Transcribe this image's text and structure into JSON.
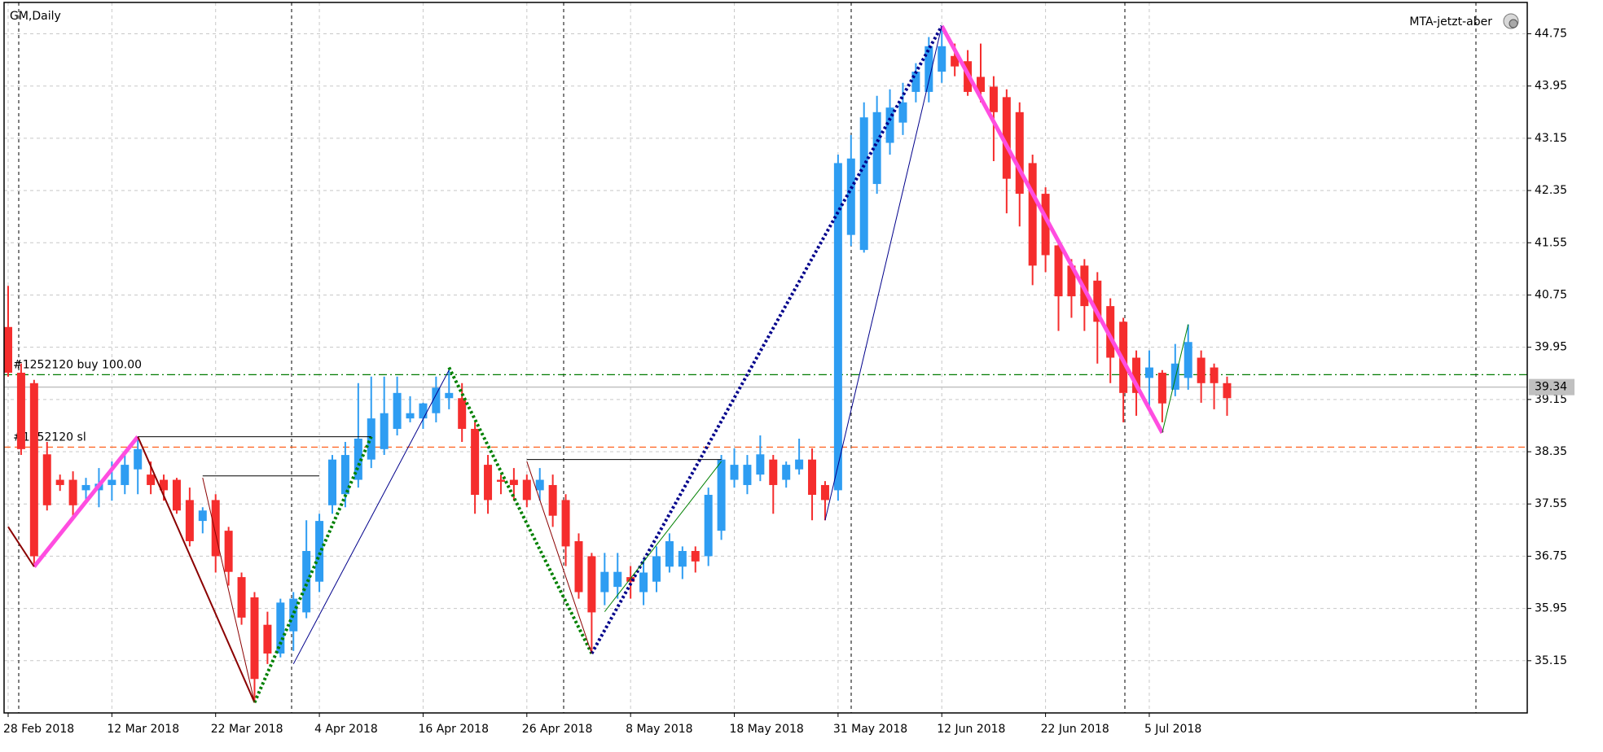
{
  "chart_data": {
    "type": "candlestick",
    "title": "GM,Daily",
    "indicator": "MTA-jetzt-aber",
    "categories": [
      "28 Feb 2018",
      null,
      null,
      null,
      null,
      null,
      null,
      null,
      "12 Mar 2018",
      null,
      null,
      null,
      null,
      null,
      null,
      null,
      "22 Mar 2018",
      null,
      null,
      null,
      null,
      null,
      null,
      null,
      "4 Apr 2018",
      null,
      null,
      null,
      null,
      null,
      null,
      null,
      "16 Apr 2018",
      null,
      null,
      null,
      null,
      null,
      null,
      null,
      "26 Apr 2018",
      null,
      null,
      null,
      null,
      null,
      null,
      null,
      "8 May 2018",
      null,
      null,
      null,
      null,
      null,
      null,
      null,
      "18 May 2018",
      null,
      null,
      null,
      null,
      null,
      null,
      null,
      "31 May 2018",
      null,
      null,
      null,
      null,
      null,
      null,
      null,
      "12 Jun 2018",
      null,
      null,
      null,
      null,
      null,
      null,
      null,
      "22 Jun 2018",
      null,
      null,
      null,
      null,
      null,
      null,
      null,
      "5 Jul 2018",
      null,
      null,
      null,
      null,
      null,
      null
    ],
    "open": [
      40.26,
      39.56,
      39.4,
      38.31,
      37.92,
      37.92,
      37.76,
      37.76,
      37.84,
      37.84,
      38.08,
      38.0,
      37.92,
      37.92,
      37.61,
      37.29,
      37.61,
      37.14,
      36.43,
      36.12,
      35.7,
      35.26,
      35.6,
      35.89,
      36.36,
      37.53,
      37.7,
      37.92,
      38.23,
      38.39,
      38.7,
      38.86,
      38.86,
      38.94,
      39.17,
      39.17,
      38.7,
      38.15,
      37.92,
      37.92,
      37.92,
      37.76,
      37.84,
      37.61,
      36.98,
      36.75,
      36.2,
      36.28,
      36.43,
      36.2,
      36.36,
      36.59,
      36.59,
      36.83,
      36.75,
      37.14,
      37.92,
      37.84,
      38.0,
      38.23,
      37.92,
      38.08,
      38.23,
      37.84,
      37.76,
      41.67,
      41.44,
      42.45,
      43.08,
      43.39,
      43.86,
      43.86,
      44.17,
      44.41,
      44.33,
      44.09,
      43.94,
      43.78,
      43.55,
      42.77,
      42.3,
      41.51,
      41.2,
      41.2,
      40.97,
      40.58,
      40.34,
      39.79,
      39.48,
      39.56,
      39.3,
      39.48,
      39.79,
      39.64,
      39.4
    ],
    "high": [
      40.89,
      39.7,
      39.45,
      38.5,
      38.0,
      38.05,
      37.95,
      38.1,
      38.2,
      38.3,
      38.58,
      38.2,
      38.0,
      37.95,
      37.8,
      37.5,
      37.7,
      37.2,
      36.5,
      36.2,
      35.9,
      36.1,
      36.2,
      37.3,
      37.4,
      38.3,
      38.5,
      39.4,
      39.5,
      39.5,
      39.5,
      39.2,
      39.1,
      39.5,
      39.6,
      39.4,
      38.8,
      38.3,
      38.0,
      38.1,
      38.0,
      38.1,
      38.0,
      37.7,
      37.1,
      36.8,
      36.8,
      36.8,
      36.6,
      36.7,
      36.9,
      37.1,
      36.9,
      36.9,
      37.8,
      38.3,
      38.4,
      38.3,
      38.6,
      38.3,
      38.2,
      38.55,
      38.4,
      37.9,
      42.9,
      43.2,
      43.7,
      43.8,
      43.9,
      44.0,
      44.3,
      44.7,
      44.87,
      44.6,
      44.5,
      44.6,
      44.1,
      43.9,
      43.7,
      42.9,
      42.4,
      41.6,
      41.3,
      41.3,
      41.1,
      40.7,
      40.4,
      39.9,
      39.9,
      39.6,
      40.0,
      40.3,
      39.9,
      39.7,
      39.5
    ],
    "low": [
      39.5,
      38.3,
      36.59,
      37.45,
      37.75,
      37.3,
      37.6,
      37.5,
      37.6,
      37.7,
      37.7,
      37.7,
      37.6,
      37.4,
      36.9,
      37.1,
      36.5,
      36.3,
      35.7,
      34.51,
      35.1,
      35.2,
      35.3,
      35.8,
      36.2,
      37.4,
      37.5,
      37.8,
      38.1,
      38.3,
      38.6,
      38.8,
      38.7,
      38.8,
      39.0,
      38.5,
      37.4,
      37.4,
      37.7,
      37.6,
      37.5,
      37.6,
      37.2,
      36.6,
      36.1,
      35.26,
      36.0,
      36.1,
      36.1,
      36.0,
      36.2,
      36.5,
      36.4,
      36.5,
      36.6,
      37.0,
      37.8,
      37.7,
      37.9,
      37.4,
      37.8,
      38.0,
      37.3,
      37.3,
      37.6,
      41.5,
      41.4,
      42.3,
      42.9,
      43.2,
      43.7,
      43.7,
      44.0,
      44.1,
      43.8,
      43.7,
      42.8,
      42.0,
      41.8,
      40.9,
      41.1,
      40.2,
      40.4,
      40.2,
      39.7,
      39.4,
      38.8,
      38.9,
      39.0,
      38.8,
      39.2,
      39.3,
      39.1,
      39.0,
      38.9
    ],
    "close": [
      39.56,
      38.39,
      36.75,
      37.53,
      37.84,
      37.53,
      37.84,
      37.86,
      37.92,
      38.15,
      38.39,
      37.84,
      37.76,
      37.45,
      36.98,
      37.45,
      36.75,
      36.51,
      35.81,
      34.87,
      35.26,
      36.04,
      36.1,
      36.83,
      37.29,
      38.23,
      38.3,
      38.55,
      38.86,
      38.94,
      39.25,
      38.94,
      39.09,
      39.33,
      39.25,
      38.7,
      37.69,
      37.61,
      37.89,
      37.84,
      37.61,
      37.92,
      37.37,
      36.9,
      36.2,
      35.89,
      36.51,
      36.51,
      36.36,
      36.5,
      36.75,
      36.98,
      36.83,
      36.67,
      37.69,
      38.23,
      38.15,
      38.15,
      38.31,
      37.84,
      38.15,
      38.23,
      37.69,
      37.61,
      42.77,
      42.84,
      43.47,
      43.55,
      43.62,
      43.7,
      44.17,
      44.56,
      44.56,
      44.25,
      43.86,
      43.86,
      43.55,
      42.53,
      42.3,
      41.2,
      41.36,
      40.73,
      40.73,
      40.58,
      40.34,
      39.79,
      39.25,
      39.25,
      39.64,
      39.09,
      39.7,
      40.03,
      39.4,
      39.4,
      39.17
    ],
    "up_color": "#2e9df2",
    "down_color": "#f52d2d",
    "ylim": [
      34.35,
      45.23
    ],
    "yticks": [
      35.15,
      35.95,
      36.75,
      37.55,
      38.35,
      39.15,
      39.95,
      40.75,
      41.55,
      42.35,
      43.15,
      43.95,
      44.75
    ],
    "grid": true,
    "current_price": 39.34,
    "order_lines": [
      {
        "label": "#1252120 buy 100.00",
        "value": 39.53,
        "color": "#007a00"
      },
      {
        "label": "#1252120 sl",
        "value": 38.42,
        "color": "#ff6a2a"
      }
    ],
    "overlays": [
      {
        "color": "#ff4de0",
        "width": 5,
        "dotted": false,
        "x": [
          2,
          10
        ],
        "y": [
          36.59,
          38.58
        ]
      },
      {
        "color": "#8b0000",
        "width": 2,
        "dotted": false,
        "x": [
          0,
          2
        ],
        "y": [
          37.2,
          36.59
        ]
      },
      {
        "color": "#8b0000",
        "width": 2,
        "dotted": false,
        "x": [
          10,
          19
        ],
        "y": [
          38.58,
          34.51
        ]
      },
      {
        "color": "#008000",
        "width": 4,
        "dotted": true,
        "x": [
          19,
          28
        ],
        "y": [
          34.51,
          38.58
        ]
      },
      {
        "color": "#008000",
        "width": 4,
        "dotted": true,
        "x": [
          34,
          45
        ],
        "y": [
          39.64,
          35.26
        ]
      },
      {
        "color": "#00008b",
        "width": 4,
        "dotted": true,
        "x": [
          45,
          72
        ],
        "y": [
          35.26,
          44.87
        ]
      },
      {
        "color": "#ff4de0",
        "width": 5,
        "dotted": false,
        "x": [
          72,
          89
        ],
        "y": [
          44.87,
          38.64
        ]
      },
      {
        "color": "#00008b",
        "width": 1,
        "dotted": false,
        "x": [
          22,
          34
        ],
        "y": [
          35.1,
          39.6
        ]
      },
      {
        "color": "#00008b",
        "width": 1,
        "dotted": false,
        "x": [
          63,
          72
        ],
        "y": [
          37.3,
          44.87
        ]
      },
      {
        "color": "#008000",
        "width": 1,
        "dotted": false,
        "x": [
          89,
          91
        ],
        "y": [
          38.64,
          40.3
        ]
      },
      {
        "color": "#008000",
        "width": 1,
        "dotted": false,
        "x": [
          46,
          55
        ],
        "y": [
          35.9,
          38.2
        ]
      },
      {
        "color": "#8b0000",
        "width": 1,
        "dotted": false,
        "x": [
          15,
          19
        ],
        "y": [
          37.95,
          34.51
        ]
      },
      {
        "color": "#8b0000",
        "width": 1,
        "dotted": false,
        "x": [
          40,
          45
        ],
        "y": [
          38.2,
          35.26
        ]
      },
      {
        "color": "#000000",
        "width": 1,
        "dotted": false,
        "x": [
          10,
          28
        ],
        "y": [
          38.58,
          38.58
        ]
      },
      {
        "color": "#000000",
        "width": 1,
        "dotted": false,
        "x": [
          15,
          24
        ],
        "y": [
          37.98,
          37.98
        ]
      },
      {
        "color": "#000000",
        "width": 1,
        "dotted": false,
        "x": [
          40,
          55
        ],
        "y": [
          38.23,
          38.23
        ]
      }
    ]
  }
}
